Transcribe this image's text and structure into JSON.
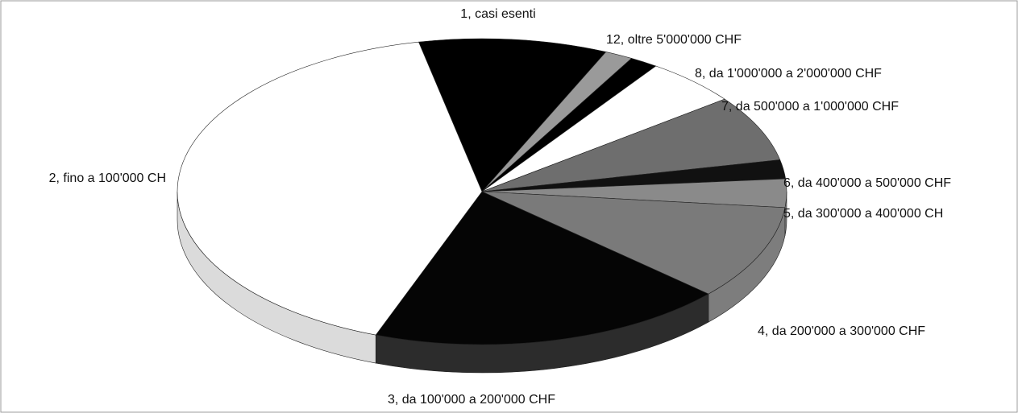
{
  "chart_data": {
    "type": "pie",
    "categories": [
      "1, casi esenti",
      "12, oltre 5'000'000 CHF",
      null,
      "8, da 1'000'000 a 2'000'000 CHF",
      "7, da 500'000 a 1'000'000 CHF",
      "6, da 400'000 a 500'000 CHF",
      "5, da 300'000 a 400'000 CH",
      "4, da 200'000 a 300'000 CHF",
      "3, da 100'000 a 200'000 CHF",
      "2, fino a 100'000 CH"
    ],
    "values": [
      10,
      1.5,
      1.5,
      5,
      7,
      2,
      3,
      10,
      19,
      41
    ],
    "colors": [
      "#000000",
      "#9a9a9a",
      "#000000",
      "#ffffff",
      "#6e6e6e",
      "#111111",
      "#8a8a8a",
      "#7a7a7a",
      "#050505",
      "#ffffff"
    ]
  }
}
